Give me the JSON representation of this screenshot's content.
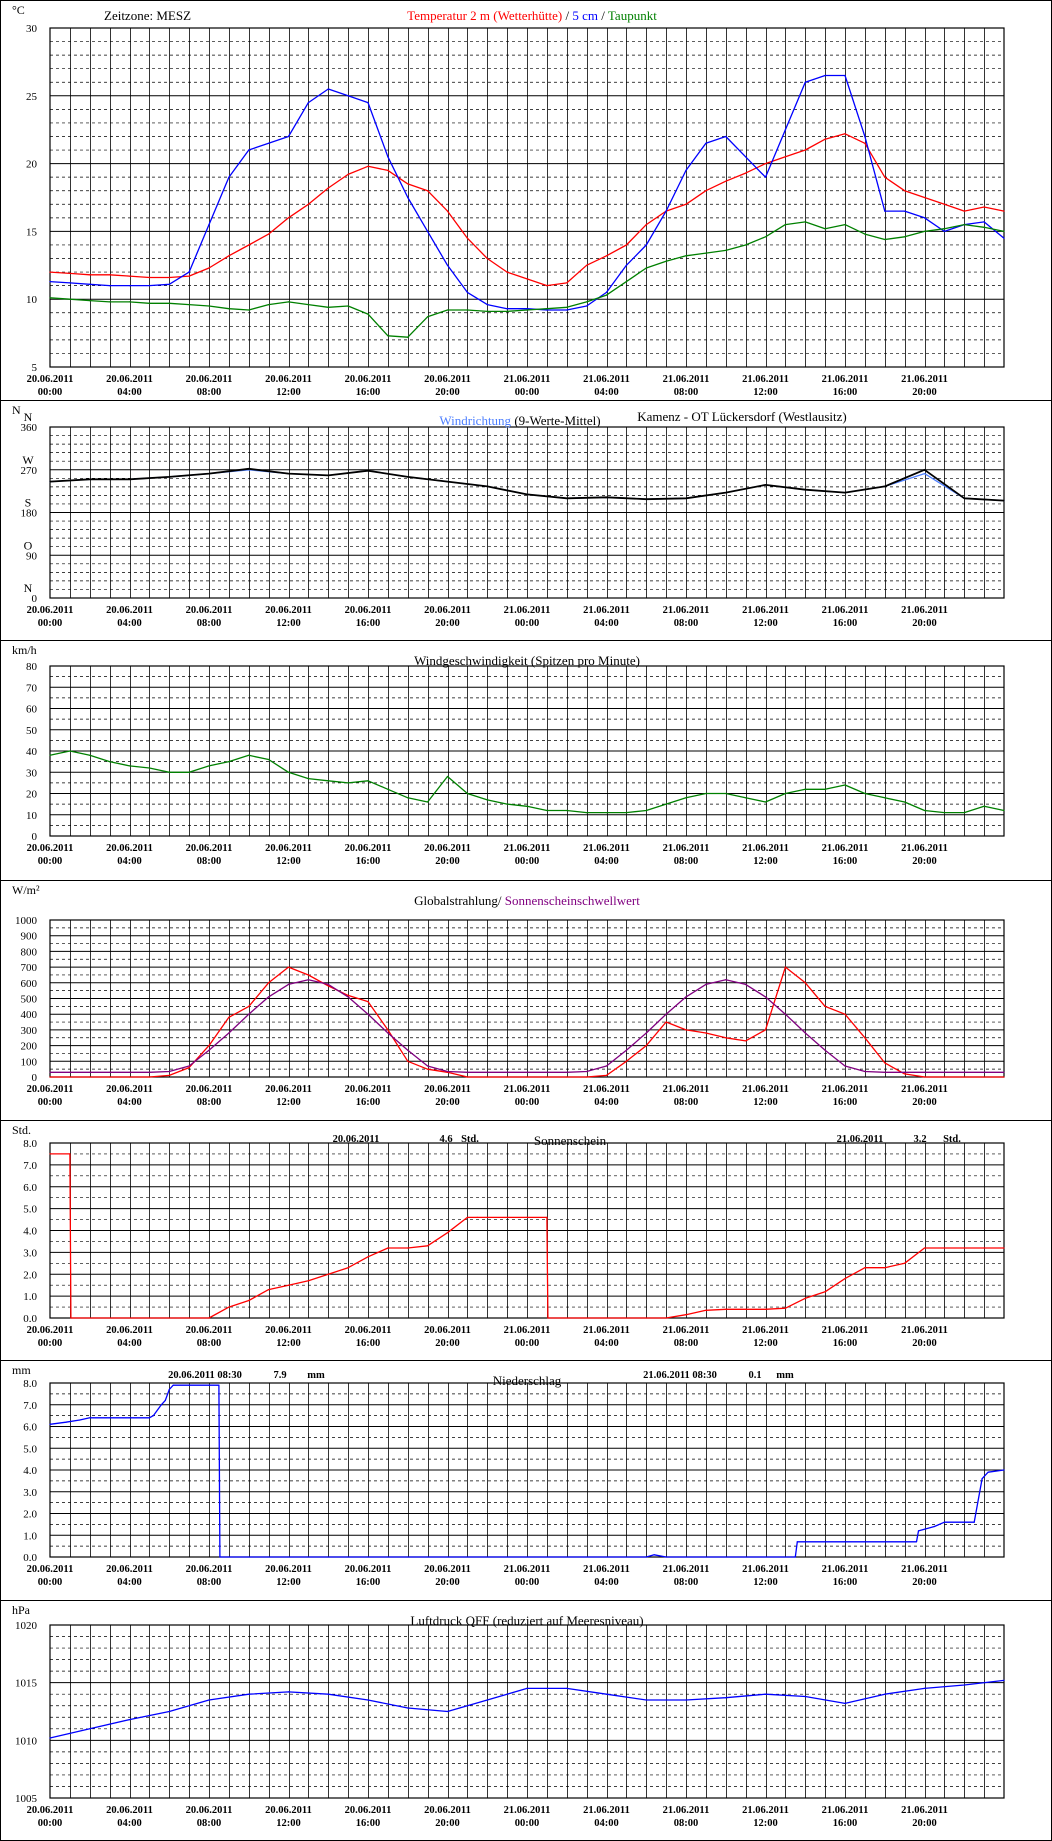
{
  "time_ticks": [
    [
      "20.06.2011",
      "00:00"
    ],
    [
      "20.06.2011",
      "04:00"
    ],
    [
      "20.06.2011",
      "08:00"
    ],
    [
      "20.06.2011",
      "12:00"
    ],
    [
      "20.06.2011",
      "16:00"
    ],
    [
      "20.06.2011",
      "20:00"
    ],
    [
      "21.06.2011",
      "00:00"
    ],
    [
      "21.06.2011",
      "04:00"
    ],
    [
      "21.06.2011",
      "08:00"
    ],
    [
      "21.06.2011",
      "12:00"
    ],
    [
      "21.06.2011",
      "16:00"
    ],
    [
      "21.06.2011",
      "20:00"
    ]
  ],
  "colors": {
    "temp_air": "#ff0000",
    "temp_5cm": "#0000ff",
    "dewpoint": "#008000",
    "wind_dir": "#4d7fff",
    "wind_dir_avg": "#000000",
    "wind_speed": "#008000",
    "radiation": "#ff0000",
    "sun_threshold": "#800080",
    "sunshine": "#ff0000",
    "precipitation": "#0000ff",
    "pressure": "#0000ff"
  },
  "chart_data": [
    {
      "type": "line",
      "unit": "°C",
      "zone_label": "Zeitzone: MESZ",
      "title_parts": [
        {
          "text": "Temperatur 2 m (Wetterhütte)",
          "color": "#ff0000"
        },
        {
          "text": "  /  ",
          "color": "#000000"
        },
        {
          "text": "5 cm",
          "color": "#0000ff"
        },
        {
          "text": " / ",
          "color": "#000000"
        },
        {
          "text": "Taupunkt",
          "color": "#008000"
        }
      ],
      "ylim": [
        5,
        30
      ],
      "yticks": [
        5,
        10,
        15,
        20,
        25,
        30
      ],
      "x_hours": [
        0,
        1,
        2,
        3,
        4,
        5,
        6,
        7,
        8,
        9,
        10,
        11,
        12,
        13,
        14,
        15,
        16,
        17,
        18,
        19,
        20,
        21,
        22,
        23,
        24,
        25,
        26,
        27,
        28,
        29,
        30,
        31,
        32,
        33,
        34,
        35,
        36,
        37,
        38,
        39,
        40,
        41,
        42,
        43,
        44,
        45,
        46,
        47,
        48
      ],
      "series": [
        {
          "name": "Temperatur 2 m (Wetterhütte)",
          "color": "#ff0000",
          "values": [
            12.0,
            11.9,
            11.8,
            11.8,
            11.7,
            11.6,
            11.6,
            11.7,
            12.3,
            13.2,
            14.0,
            14.8,
            16.0,
            17.0,
            18.2,
            19.2,
            19.8,
            19.5,
            18.5,
            18.0,
            16.5,
            14.5,
            13.0,
            12.0,
            11.5,
            11.0,
            11.2,
            12.5,
            13.2,
            14.0,
            15.5,
            16.5,
            17.0,
            18.0,
            18.7,
            19.3,
            20.0,
            20.5,
            21.0,
            21.8,
            22.2,
            21.5,
            19.0,
            18.0,
            17.5,
            17.0,
            16.5,
            16.8,
            16.5
          ]
        },
        {
          "name": "5 cm",
          "color": "#0000ff",
          "values": [
            11.3,
            11.2,
            11.1,
            11.0,
            11.0,
            11.0,
            11.1,
            12.0,
            15.5,
            19.0,
            21.0,
            21.5,
            22.0,
            24.5,
            25.5,
            25.0,
            24.5,
            20.5,
            17.5,
            15.0,
            12.5,
            10.5,
            9.6,
            9.3,
            9.3,
            9.2,
            9.2,
            9.5,
            10.5,
            12.5,
            14.0,
            16.5,
            19.5,
            21.5,
            22.0,
            20.5,
            19.0,
            22.5,
            26.0,
            26.5,
            26.5,
            22.0,
            16.5,
            16.5,
            16.0,
            15.0,
            15.5,
            15.7,
            14.5
          ]
        },
        {
          "name": "Taupunkt",
          "color": "#008000",
          "values": [
            10.1,
            10.0,
            9.9,
            9.8,
            9.8,
            9.7,
            9.7,
            9.6,
            9.5,
            9.3,
            9.2,
            9.6,
            9.8,
            9.6,
            9.4,
            9.5,
            8.9,
            7.3,
            7.2,
            8.7,
            9.2,
            9.2,
            9.1,
            9.1,
            9.2,
            9.3,
            9.4,
            9.8,
            10.3,
            11.3,
            12.3,
            12.8,
            13.2,
            13.4,
            13.6,
            14.0,
            14.6,
            15.5,
            15.7,
            15.2,
            15.5,
            14.8,
            14.4,
            14.6,
            15.0,
            15.2,
            15.5,
            15.3,
            15.0
          ]
        }
      ]
    },
    {
      "type": "line",
      "unit": "N",
      "title_parts": [
        {
          "text": "Windrichtung",
          "color": "#4d7fff"
        },
        {
          "text": " (9-Werte-Mittel)",
          "color": "#000000"
        }
      ],
      "station": "Kamenz - OT Lückersdorf (Westlausitz)",
      "ylim": [
        0,
        360
      ],
      "yticks": [
        0,
        90,
        180,
        270,
        360
      ],
      "direction_labels": [
        [
          "N",
          360
        ],
        [
          "W",
          270
        ],
        [
          "S",
          180
        ],
        [
          "O",
          90
        ],
        [
          "N",
          0
        ]
      ],
      "x_hours": [
        0,
        2,
        4,
        6,
        8,
        10,
        12,
        14,
        16,
        18,
        20,
        22,
        24,
        26,
        28,
        30,
        32,
        34,
        36,
        38,
        40,
        42,
        44,
        46,
        48
      ],
      "series": [
        {
          "name": "Windrichtung",
          "color": "#4d7fff",
          "values": [
            245,
            250,
            250,
            255,
            262,
            270,
            262,
            258,
            268,
            255,
            245,
            235,
            218,
            210,
            212,
            208,
            210,
            222,
            238,
            228,
            222,
            235,
            262,
            210,
            205
          ]
        },
        {
          "name": "9-Werte-Mittel",
          "color": "#000000",
          "values": [
            245,
            250,
            250,
            255,
            262,
            272,
            262,
            258,
            268,
            255,
            245,
            235,
            218,
            210,
            212,
            208,
            210,
            222,
            238,
            228,
            222,
            235,
            270,
            210,
            205
          ]
        }
      ]
    },
    {
      "type": "line",
      "unit": "km/h",
      "title_parts": [
        {
          "text": "Windgeschwindigkeit (Spitzen pro Minute)",
          "color": "#000000"
        }
      ],
      "ylim": [
        0,
        80
      ],
      "yticks": [
        0,
        10,
        20,
        30,
        40,
        50,
        60,
        70,
        80
      ],
      "x_hours": [
        0,
        1,
        2,
        3,
        4,
        5,
        6,
        7,
        8,
        9,
        10,
        11,
        12,
        13,
        14,
        15,
        16,
        17,
        18,
        19,
        20,
        21,
        22,
        23,
        24,
        25,
        26,
        27,
        28,
        29,
        30,
        31,
        32,
        33,
        34,
        35,
        36,
        37,
        38,
        39,
        40,
        41,
        42,
        43,
        44,
        45,
        46,
        47,
        48
      ],
      "series": [
        {
          "name": "Windgeschwindigkeit",
          "color": "#008000",
          "values": [
            38,
            40,
            38,
            35,
            33,
            32,
            30,
            30,
            33,
            35,
            38,
            36,
            30,
            27,
            26,
            25,
            26,
            22,
            18,
            16,
            28,
            20,
            17,
            15,
            14,
            12,
            12,
            11,
            11,
            11,
            12,
            15,
            18,
            20,
            20,
            18,
            16,
            20,
            22,
            22,
            24,
            20,
            18,
            16,
            12,
            11,
            11,
            14,
            12
          ]
        }
      ]
    },
    {
      "type": "line",
      "unit": "W/m²",
      "title_parts": [
        {
          "text": "Globalstrahlung/",
          "color": "#000000"
        },
        {
          "text": " Sonnenscheinschwellwert",
          "color": "#800080"
        }
      ],
      "ylim": [
        0,
        1000
      ],
      "yticks": [
        0,
        100,
        200,
        300,
        400,
        500,
        600,
        700,
        800,
        900,
        1000
      ],
      "x_hours": [
        0,
        1,
        2,
        3,
        4,
        5,
        6,
        7,
        8,
        9,
        10,
        11,
        12,
        13,
        14,
        15,
        16,
        17,
        18,
        19,
        20,
        21,
        22,
        23,
        24,
        25,
        26,
        27,
        28,
        29,
        30,
        31,
        32,
        33,
        34,
        35,
        36,
        37,
        38,
        39,
        40,
        41,
        42,
        43,
        44,
        45,
        46,
        47,
        48
      ],
      "series": [
        {
          "name": "Globalstrahlung",
          "color": "#ff0000",
          "values": [
            0,
            0,
            0,
            0,
            0,
            0,
            10,
            60,
            200,
            380,
            450,
            600,
            700,
            650,
            580,
            520,
            480,
            300,
            100,
            50,
            30,
            0,
            0,
            0,
            0,
            0,
            0,
            0,
            10,
            100,
            200,
            350,
            300,
            280,
            250,
            230,
            300,
            700,
            600,
            450,
            400,
            250,
            90,
            20,
            0,
            0,
            0,
            0,
            0
          ]
        },
        {
          "name": "Sonnenscheinschwellwert",
          "color": "#800080",
          "values": [
            30,
            30,
            30,
            30,
            30,
            30,
            35,
            70,
            170,
            280,
            400,
            510,
            590,
            620,
            590,
            510,
            400,
            280,
            170,
            70,
            35,
            30,
            30,
            30,
            30,
            30,
            30,
            35,
            70,
            170,
            280,
            400,
            510,
            590,
            620,
            590,
            510,
            400,
            280,
            170,
            70,
            35,
            30,
            30,
            30,
            30,
            30,
            30,
            30
          ]
        }
      ]
    },
    {
      "type": "line",
      "unit": "Std.",
      "title_parts": [
        {
          "text": "Sonnenschein",
          "color": "#000000"
        }
      ],
      "annotations": [
        {
          "date": "20.06.2011",
          "value": "4.6",
          "unit": "Std."
        },
        {
          "date": "21.06.2011",
          "value": "3.2",
          "unit": "Std."
        }
      ],
      "ylim": [
        0,
        8
      ],
      "yticks": [
        "0.0",
        "1.0",
        "2.0",
        "3.0",
        "4.0",
        "5.0",
        "6.0",
        "7.0",
        "8.0"
      ],
      "x_hours": [
        0,
        1.0,
        1.05,
        8,
        9,
        10,
        11,
        12,
        13,
        14,
        15,
        16,
        17,
        18,
        19,
        20,
        21,
        21.5,
        24,
        25,
        25.05,
        30,
        31,
        32,
        33,
        34,
        35,
        36,
        37,
        38,
        39,
        40,
        41,
        42,
        43,
        44,
        45,
        46,
        47,
        48
      ],
      "series": [
        {
          "name": "Sonnenschein",
          "color": "#ff0000",
          "values": [
            7.5,
            7.5,
            0,
            0,
            0.5,
            0.8,
            1.3,
            1.5,
            1.7,
            2.0,
            2.3,
            2.8,
            3.2,
            3.2,
            3.3,
            3.9,
            4.6,
            4.6,
            4.6,
            4.6,
            0,
            0,
            0,
            0.15,
            0.35,
            0.4,
            0.4,
            0.4,
            0.45,
            0.9,
            1.2,
            1.8,
            2.3,
            2.3,
            2.5,
            3.2,
            3.2,
            3.2,
            3.2,
            3.2
          ]
        }
      ]
    },
    {
      "type": "line",
      "unit": "mm",
      "title_parts": [
        {
          "text": "Niederschlag",
          "color": "#000000"
        }
      ],
      "annotations": [
        {
          "date": "20.06.2011 08:30",
          "value": "7.9",
          "unit": "mm"
        },
        {
          "date": "21.06.2011 08:30",
          "value": "0.1",
          "unit": "mm"
        }
      ],
      "ylim": [
        0,
        8
      ],
      "yticks": [
        "0.0",
        "1.0",
        "2.0",
        "3.0",
        "4.0",
        "5.0",
        "6.0",
        "7.0",
        "8.0"
      ],
      "x_hours": [
        0,
        0.8,
        1.5,
        2,
        3,
        4,
        5,
        5.2,
        5.6,
        5.8,
        6,
        6.2,
        7,
        8,
        8.4,
        8.5,
        8.55,
        30,
        30.4,
        31,
        37.5,
        37.6,
        40,
        43.6,
        43.7,
        44.5,
        45,
        46.5,
        46.9,
        47.2,
        48
      ],
      "series": [
        {
          "name": "Niederschlag",
          "color": "#0000ff",
          "values": [
            6.1,
            6.2,
            6.3,
            6.4,
            6.4,
            6.4,
            6.4,
            6.5,
            7.0,
            7.2,
            7.7,
            7.9,
            7.9,
            7.9,
            7.9,
            7.9,
            0,
            0,
            0.1,
            0,
            0,
            0.7,
            0.7,
            0.7,
            1.2,
            1.4,
            1.6,
            1.6,
            3.6,
            3.9,
            4.0
          ]
        }
      ]
    },
    {
      "type": "line",
      "unit": "hPa",
      "title_parts": [
        {
          "text": "Luftdruck QFF (reduziert auf Meeresniveau)",
          "color": "#000000"
        }
      ],
      "ylim": [
        1005,
        1020
      ],
      "yticks": [
        1005,
        1010,
        1015,
        1020
      ],
      "x_hours": [
        0,
        2,
        4,
        6,
        8,
        10,
        12,
        14,
        16,
        18,
        20,
        22,
        24,
        26,
        28,
        30,
        32,
        34,
        36,
        38,
        40,
        42,
        44,
        46,
        48
      ],
      "series": [
        {
          "name": "Luftdruck QFF",
          "color": "#0000ff",
          "values": [
            1010.2,
            1011.0,
            1011.8,
            1012.5,
            1013.5,
            1014.0,
            1014.2,
            1014.0,
            1013.5,
            1012.8,
            1012.5,
            1013.5,
            1014.5,
            1014.5,
            1014.0,
            1013.5,
            1013.5,
            1013.7,
            1014.0,
            1013.8,
            1013.2,
            1014.0,
            1014.5,
            1014.8,
            1015.2
          ]
        }
      ]
    }
  ]
}
